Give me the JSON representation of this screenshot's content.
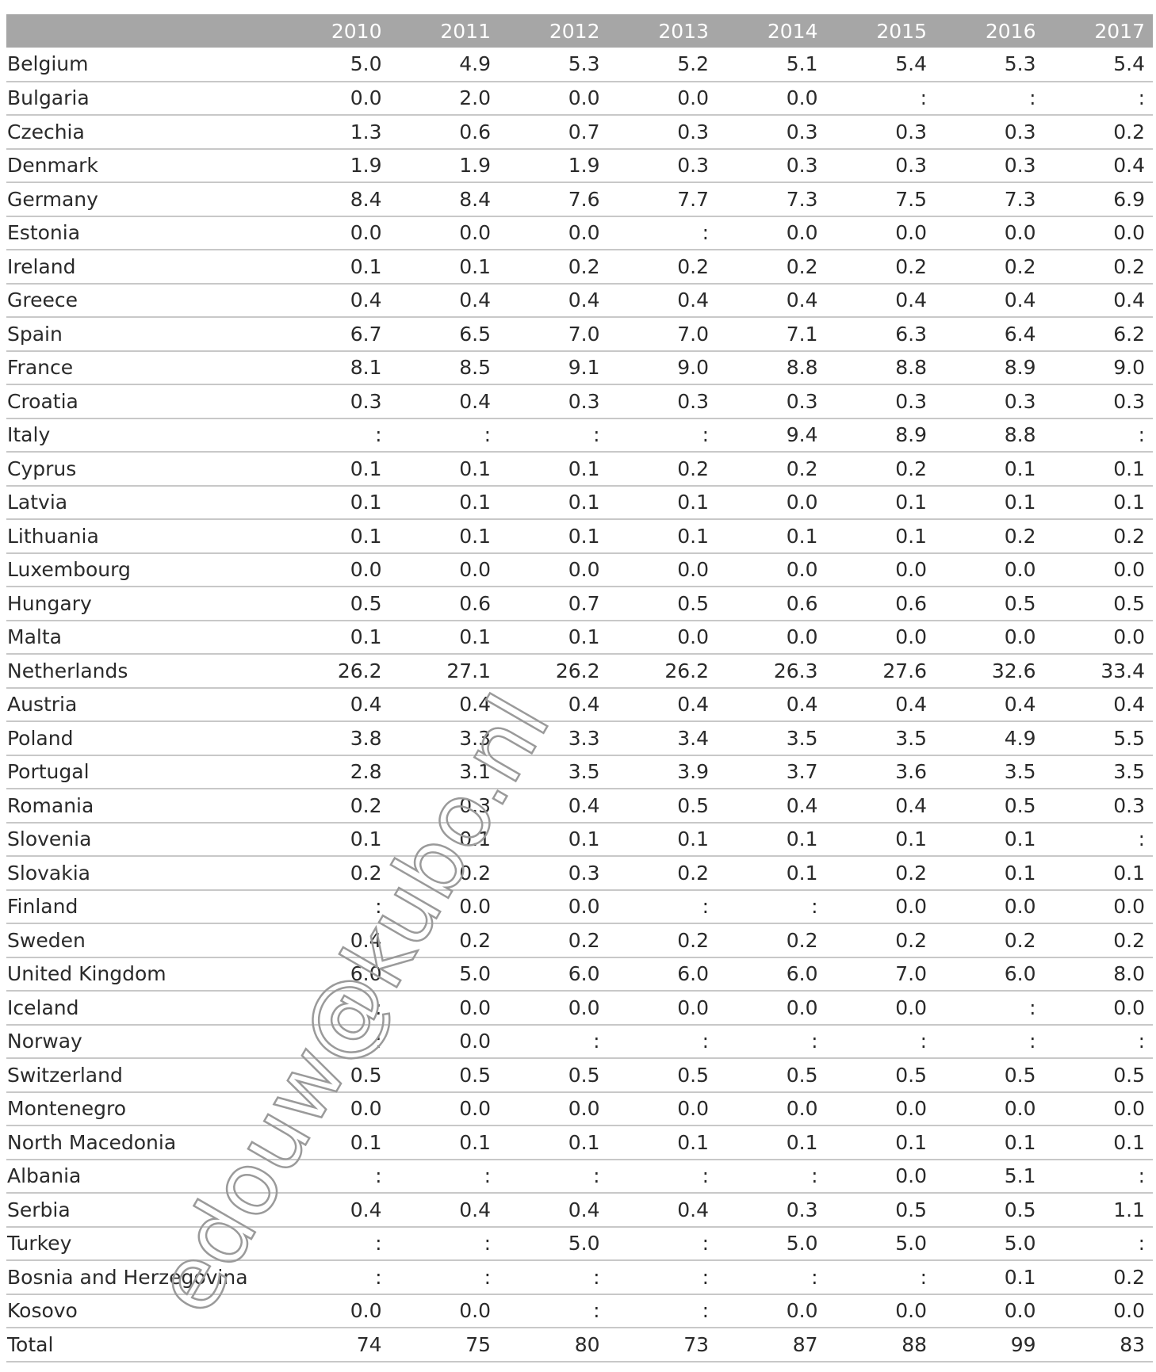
{
  "table": {
    "columns": [
      "2010",
      "2011",
      "2012",
      "2013",
      "2014",
      "2015",
      "2016",
      "2017"
    ],
    "rows": [
      {
        "country": "Belgium",
        "values": [
          "5.0",
          "4.9",
          "5.3",
          "5.2",
          "5.1",
          "5.4",
          "5.3",
          "5.4"
        ]
      },
      {
        "country": "Bulgaria",
        "values": [
          "0.0",
          "2.0",
          "0.0",
          "0.0",
          "0.0",
          ":",
          ":",
          ":"
        ]
      },
      {
        "country": "Czechia",
        "values": [
          "1.3",
          "0.6",
          "0.7",
          "0.3",
          "0.3",
          "0.3",
          "0.3",
          "0.2"
        ]
      },
      {
        "country": "Denmark",
        "values": [
          "1.9",
          "1.9",
          "1.9",
          "0.3",
          "0.3",
          "0.3",
          "0.3",
          "0.4"
        ]
      },
      {
        "country": "Germany",
        "values": [
          "8.4",
          "8.4",
          "7.6",
          "7.7",
          "7.3",
          "7.5",
          "7.3",
          "6.9"
        ]
      },
      {
        "country": "Estonia",
        "values": [
          "0.0",
          "0.0",
          "0.0",
          ":",
          "0.0",
          "0.0",
          "0.0",
          "0.0"
        ]
      },
      {
        "country": "Ireland",
        "values": [
          "0.1",
          "0.1",
          "0.2",
          "0.2",
          "0.2",
          "0.2",
          "0.2",
          "0.2"
        ]
      },
      {
        "country": "Greece",
        "values": [
          "0.4",
          "0.4",
          "0.4",
          "0.4",
          "0.4",
          "0.4",
          "0.4",
          "0.4"
        ]
      },
      {
        "country": "Spain",
        "values": [
          "6.7",
          "6.5",
          "7.0",
          "7.0",
          "7.1",
          "6.3",
          "6.4",
          "6.2"
        ]
      },
      {
        "country": "France",
        "values": [
          "8.1",
          "8.5",
          "9.1",
          "9.0",
          "8.8",
          "8.8",
          "8.9",
          "9.0"
        ]
      },
      {
        "country": "Croatia",
        "values": [
          "0.3",
          "0.4",
          "0.3",
          "0.3",
          "0.3",
          "0.3",
          "0.3",
          "0.3"
        ]
      },
      {
        "country": "Italy",
        "values": [
          ":",
          ":",
          ":",
          ":",
          "9.4",
          "8.9",
          "8.8",
          ":"
        ]
      },
      {
        "country": "Cyprus",
        "values": [
          "0.1",
          "0.1",
          "0.1",
          "0.2",
          "0.2",
          "0.2",
          "0.1",
          "0.1"
        ]
      },
      {
        "country": "Latvia",
        "values": [
          "0.1",
          "0.1",
          "0.1",
          "0.1",
          "0.0",
          "0.1",
          "0.1",
          "0.1"
        ]
      },
      {
        "country": "Lithuania",
        "values": [
          "0.1",
          "0.1",
          "0.1",
          "0.1",
          "0.1",
          "0.1",
          "0.2",
          "0.2"
        ]
      },
      {
        "country": "Luxembourg",
        "values": [
          "0.0",
          "0.0",
          "0.0",
          "0.0",
          "0.0",
          "0.0",
          "0.0",
          "0.0"
        ]
      },
      {
        "country": "Hungary",
        "values": [
          "0.5",
          "0.6",
          "0.7",
          "0.5",
          "0.6",
          "0.6",
          "0.5",
          "0.5"
        ]
      },
      {
        "country": "Malta",
        "values": [
          "0.1",
          "0.1",
          "0.1",
          "0.0",
          "0.0",
          "0.0",
          "0.0",
          "0.0"
        ]
      },
      {
        "country": "Netherlands",
        "values": [
          "26.2",
          "27.1",
          "26.2",
          "26.2",
          "26.3",
          "27.6",
          "32.6",
          "33.4"
        ]
      },
      {
        "country": "Austria",
        "values": [
          "0.4",
          "0.4",
          "0.4",
          "0.4",
          "0.4",
          "0.4",
          "0.4",
          "0.4"
        ]
      },
      {
        "country": "Poland",
        "values": [
          "3.8",
          "3.3",
          "3.3",
          "3.4",
          "3.5",
          "3.5",
          "4.9",
          "5.5"
        ]
      },
      {
        "country": "Portugal",
        "values": [
          "2.8",
          "3.1",
          "3.5",
          "3.9",
          "3.7",
          "3.6",
          "3.5",
          "3.5"
        ]
      },
      {
        "country": "Romania",
        "values": [
          "0.2",
          "0.3",
          "0.4",
          "0.5",
          "0.4",
          "0.4",
          "0.5",
          "0.3"
        ]
      },
      {
        "country": "Slovenia",
        "values": [
          "0.1",
          "0.1",
          "0.1",
          "0.1",
          "0.1",
          "0.1",
          "0.1",
          ":"
        ]
      },
      {
        "country": "Slovakia",
        "values": [
          "0.2",
          "0.2",
          "0.3",
          "0.2",
          "0.1",
          "0.2",
          "0.1",
          "0.1"
        ]
      },
      {
        "country": "Finland",
        "values": [
          ":",
          "0.0",
          "0.0",
          ":",
          ":",
          "0.0",
          "0.0",
          "0.0"
        ]
      },
      {
        "country": "Sweden",
        "values": [
          "0.4",
          "0.2",
          "0.2",
          "0.2",
          "0.2",
          "0.2",
          "0.2",
          "0.2"
        ]
      },
      {
        "country": "United Kingdom",
        "values": [
          "6.0",
          "5.0",
          "6.0",
          "6.0",
          "6.0",
          "7.0",
          "6.0",
          "8.0"
        ]
      },
      {
        "country": "Iceland",
        "values": [
          ":",
          "0.0",
          "0.0",
          "0.0",
          "0.0",
          "0.0",
          ":",
          "0.0"
        ]
      },
      {
        "country": "Norway",
        "values": [
          ":",
          "0.0",
          ":",
          ":",
          ":",
          ":",
          ":",
          ":"
        ]
      },
      {
        "country": "Switzerland",
        "values": [
          "0.5",
          "0.5",
          "0.5",
          "0.5",
          "0.5",
          "0.5",
          "0.5",
          "0.5"
        ]
      },
      {
        "country": "Montenegro",
        "values": [
          "0.0",
          "0.0",
          "0.0",
          "0.0",
          "0.0",
          "0.0",
          "0.0",
          "0.0"
        ]
      },
      {
        "country": "North Macedonia",
        "values": [
          "0.1",
          "0.1",
          "0.1",
          "0.1",
          "0.1",
          "0.1",
          "0.1",
          "0.1"
        ]
      },
      {
        "country": "Albania",
        "values": [
          ":",
          ":",
          ":",
          ":",
          ":",
          "0.0",
          "5.1",
          ":"
        ]
      },
      {
        "country": "Serbia",
        "values": [
          "0.4",
          "0.4",
          "0.4",
          "0.4",
          "0.3",
          "0.5",
          "0.5",
          "1.1"
        ]
      },
      {
        "country": "Turkey",
        "values": [
          ":",
          ":",
          "5.0",
          ":",
          "5.0",
          "5.0",
          "5.0",
          ":"
        ]
      },
      {
        "country": "Bosnia and Herzegovina",
        "values": [
          ":",
          ":",
          ":",
          ":",
          ":",
          ":",
          "0.1",
          "0.2"
        ]
      },
      {
        "country": "Kosovo",
        "values": [
          "0.0",
          "0.0",
          ":",
          ":",
          "0.0",
          "0.0",
          "0.0",
          "0.0"
        ]
      }
    ],
    "total": {
      "label": "Total",
      "values": [
        "74",
        "75",
        "80",
        "73",
        "87",
        "88",
        "99",
        "83"
      ]
    }
  },
  "watermark": {
    "text": "edouw@kubo.nl",
    "color": "#9a9a9a"
  }
}
